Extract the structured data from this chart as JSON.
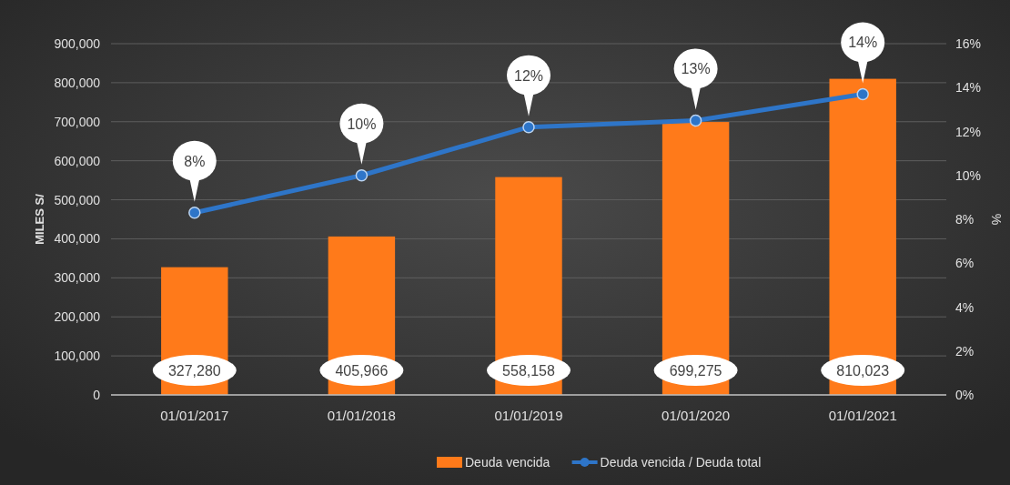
{
  "chart_data": {
    "type": "bar",
    "categories": [
      "01/01/2017",
      "01/01/2018",
      "01/01/2019",
      "01/01/2020",
      "01/01/2021"
    ],
    "ylabel": "MILES S/",
    "y2label": "%",
    "series": [
      {
        "name": "Deuda vencida",
        "color": "#ff7a1a",
        "values": [
          327280,
          405966,
          558158,
          699275,
          810023
        ],
        "value_labels": [
          "327,280",
          "405,966",
          "558,158",
          "699,275",
          "810,023"
        ]
      },
      {
        "name": "Deuda vencida / Deuda total",
        "type": "line",
        "axis": "y2",
        "color": "#2e75c8",
        "values": [
          8.3,
          10.0,
          12.2,
          12.5,
          13.7
        ],
        "value_labels": [
          "8%",
          "10%",
          "12%",
          "13%",
          "14%"
        ]
      }
    ],
    "ylim": [
      0,
      900000
    ],
    "yticks": [
      {
        "value": 0,
        "label": "0"
      },
      {
        "value": 100000,
        "label": "100,000"
      },
      {
        "value": 200000,
        "label": "200,000"
      },
      {
        "value": 300000,
        "label": "300,000"
      },
      {
        "value": 400000,
        "label": "400,000"
      },
      {
        "value": 500000,
        "label": "500,000"
      },
      {
        "value": 600000,
        "label": "600,000"
      },
      {
        "value": 700000,
        "label": "700,000"
      },
      {
        "value": 800000,
        "label": "800,000"
      },
      {
        "value": 900000,
        "label": "900,000"
      }
    ],
    "y2lim": [
      0,
      16
    ],
    "y2ticks": [
      {
        "value": 0,
        "label": "0%"
      },
      {
        "value": 2,
        "label": "2%"
      },
      {
        "value": 4,
        "label": "4%"
      },
      {
        "value": 6,
        "label": "6%"
      },
      {
        "value": 8,
        "label": "8%"
      },
      {
        "value": 10,
        "label": "10%"
      },
      {
        "value": 12,
        "label": "12%"
      },
      {
        "value": 14,
        "label": "14%"
      },
      {
        "value": 16,
        "label": "16%"
      }
    ],
    "grid": "y",
    "legend": "bottom",
    "marker": "circle",
    "line_style": "solid"
  }
}
